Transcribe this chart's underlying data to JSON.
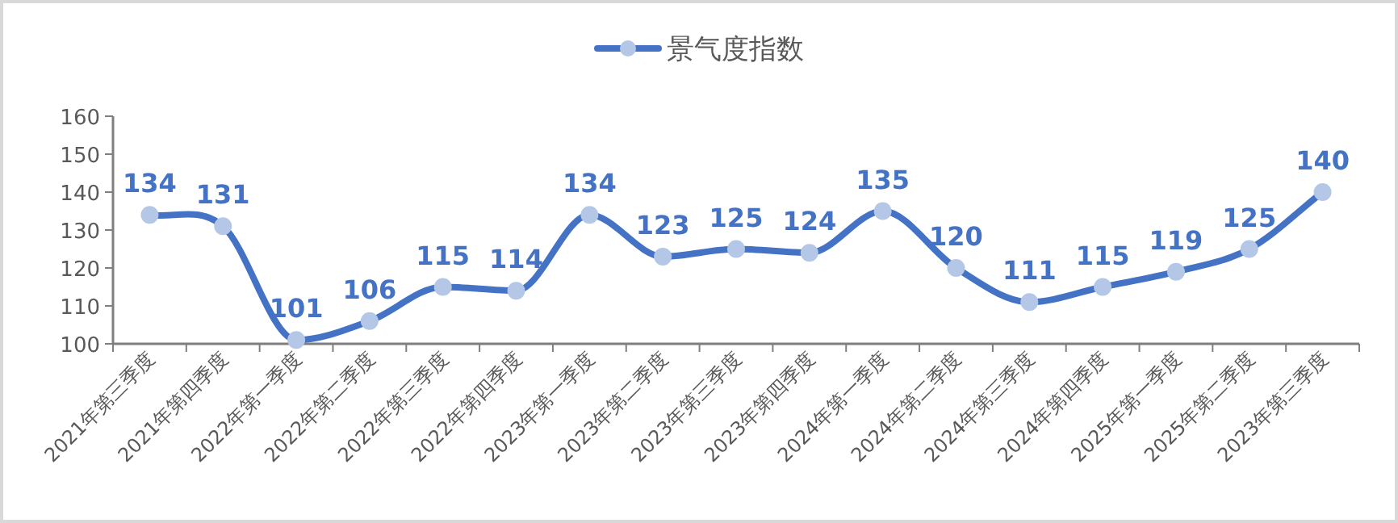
{
  "chart_data": {
    "type": "line",
    "categories": [
      "2021年第三季度",
      "2021年第四季度",
      "2022年第一季度",
      "2022年第二季度",
      "2022年第三季度",
      "2022年第四季度",
      "2023年第一季度",
      "2023年第二季度",
      "2023年第三季度",
      "2023年第四季度",
      "2024年第一季度",
      "2024年第二季度",
      "2024年第三季度",
      "2024年第四季度",
      "2025年第一季度",
      "2025年第二季度",
      "2023年第三季度"
    ],
    "series": [
      {
        "name": "景气度指数",
        "color": "#4472c4",
        "values": [
          134,
          131,
          101,
          106,
          115,
          114,
          134,
          123,
          125,
          124,
          135,
          120,
          111,
          115,
          119,
          125,
          140
        ]
      }
    ],
    "ylim": [
      100,
      160
    ],
    "yticks": [
      100,
      110,
      120,
      130,
      140,
      150,
      160
    ],
    "grid": false,
    "legend": "top",
    "marker": "circle",
    "line_style": "solid",
    "data_labels": true
  }
}
